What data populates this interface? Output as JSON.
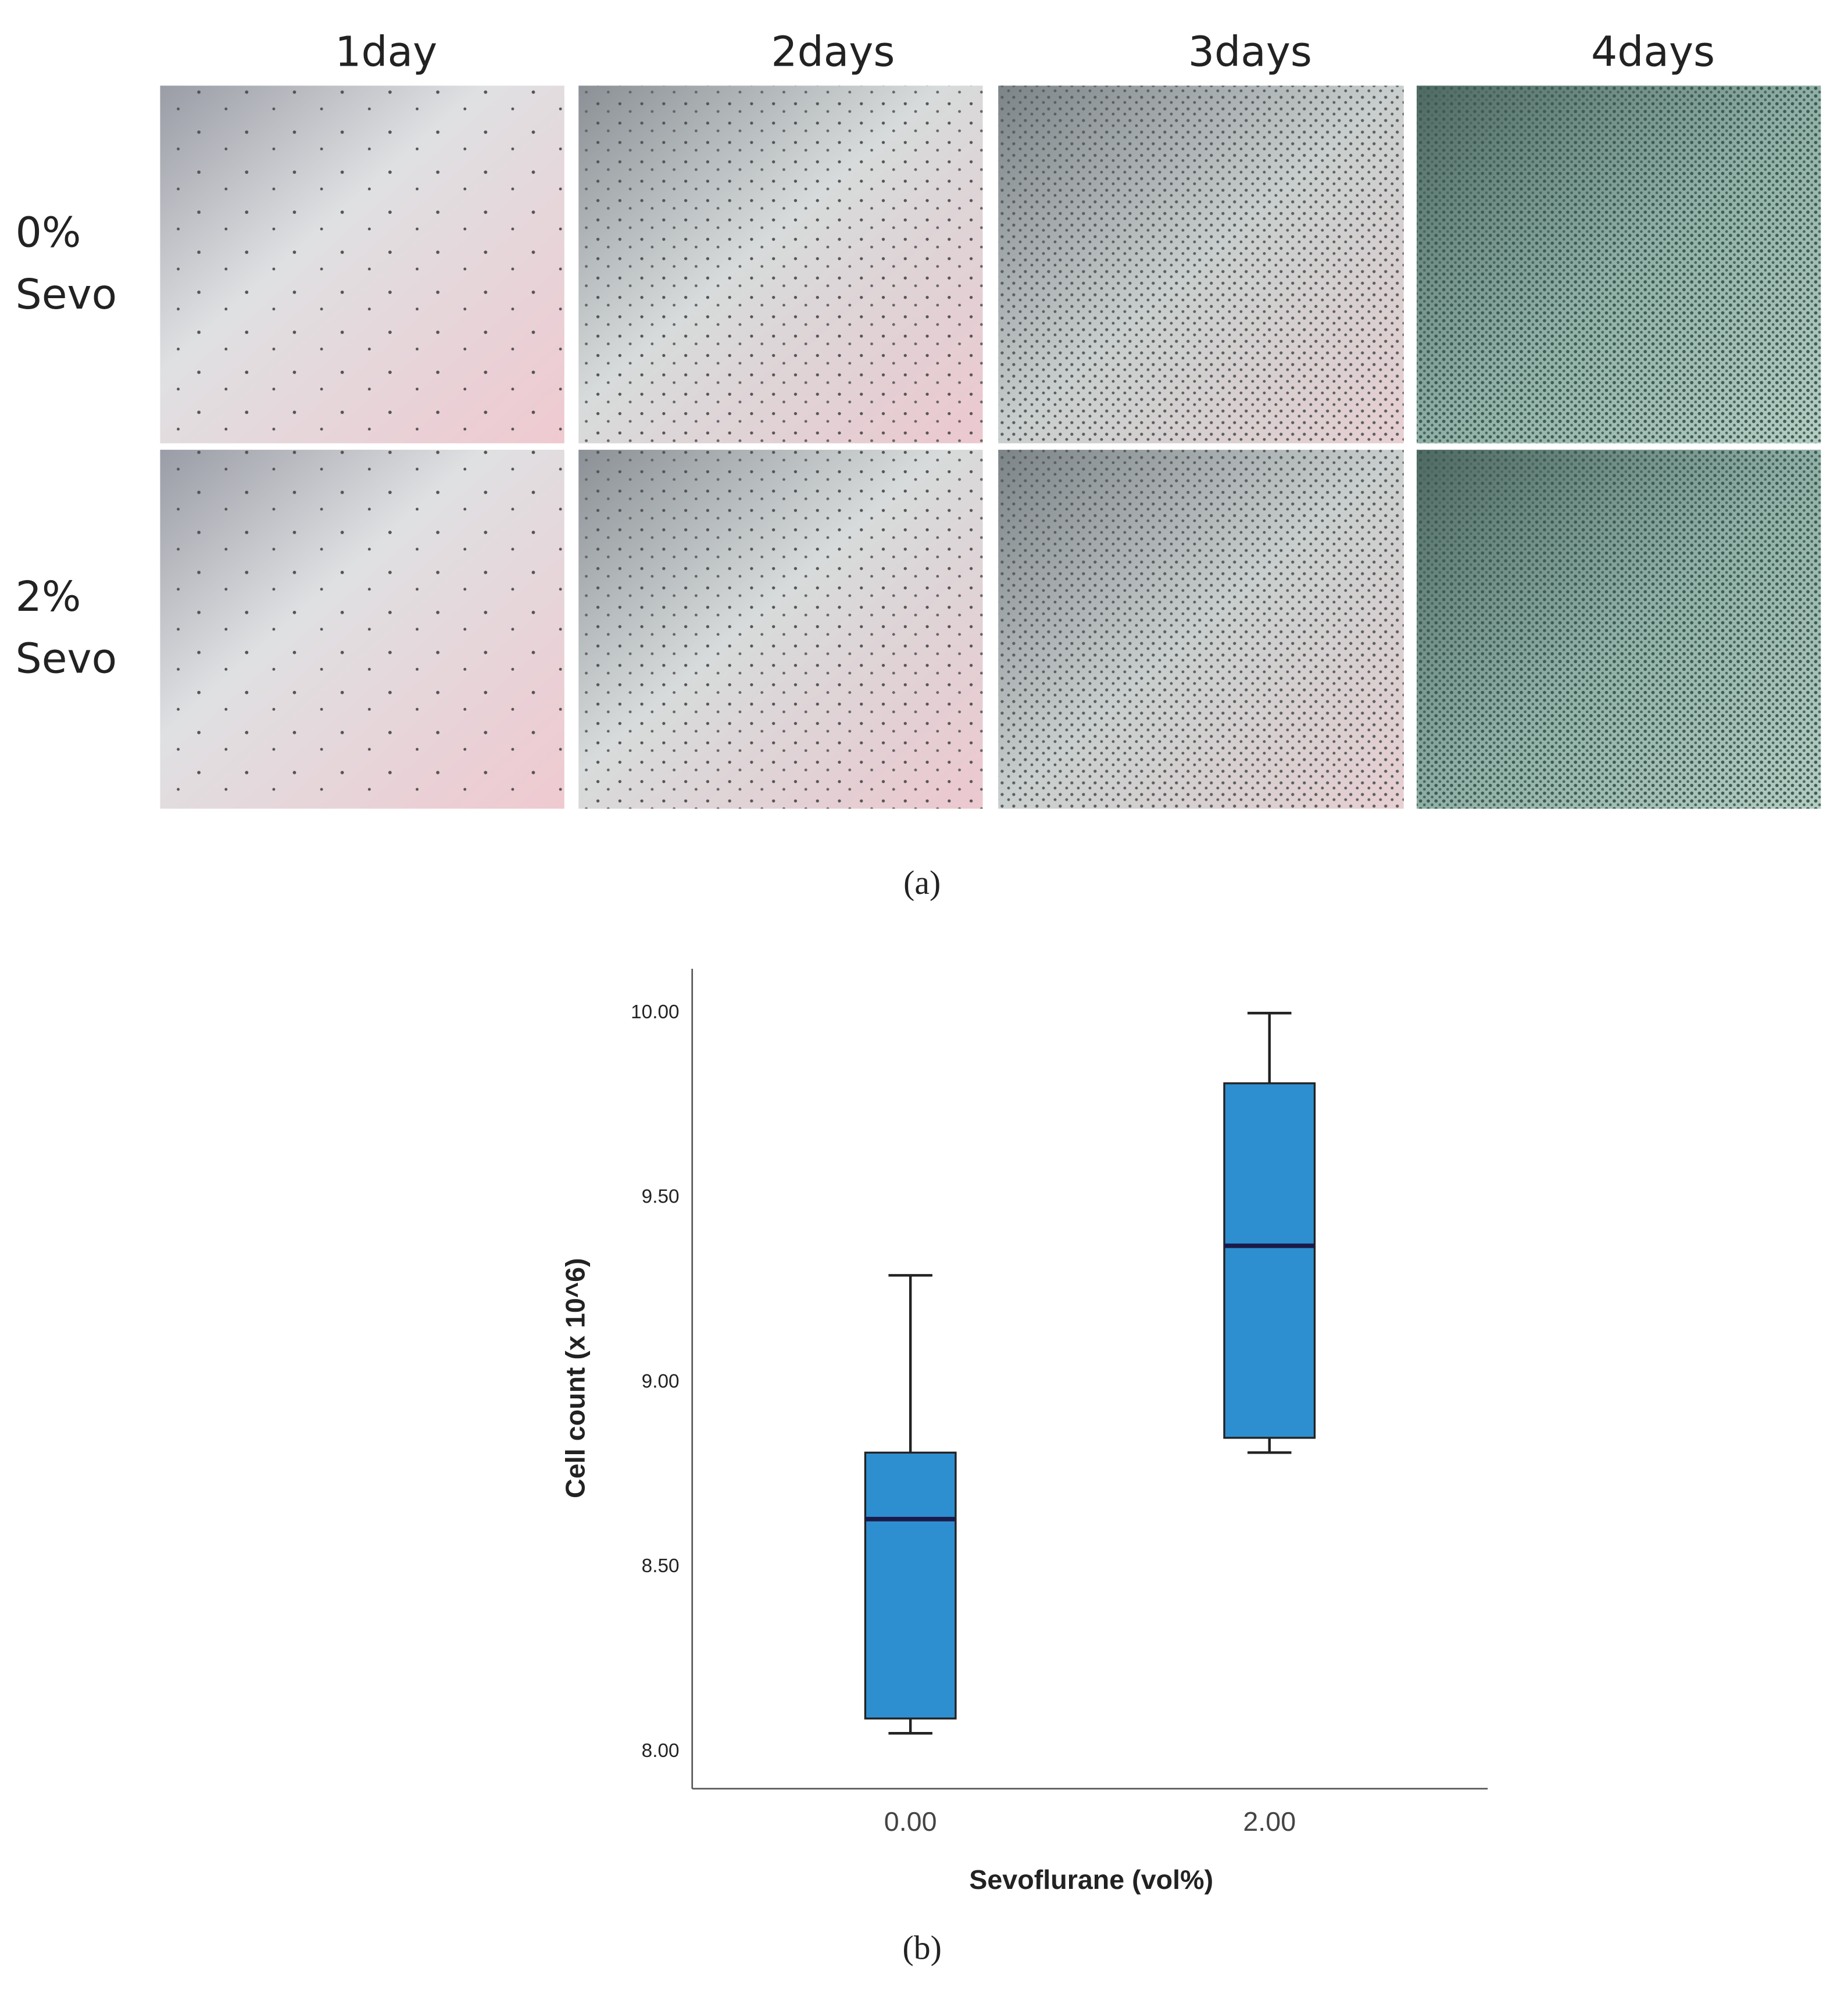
{
  "figure": {
    "columns": [
      "1day",
      "2days",
      "3days",
      "4days"
    ],
    "rows": [
      [
        "0%",
        "Sevo"
      ],
      [
        "2%",
        "Sevo"
      ]
    ],
    "caption_a": "(a)",
    "caption_b": "(b)"
  },
  "chart_data": {
    "type": "box",
    "x_label": "Sevoflurane (vol%)",
    "y_label": "Cell count (x 10^6)",
    "categories": [
      "0.00",
      "2.00"
    ],
    "min": [
      8.05,
      8.81
    ],
    "q1": [
      8.09,
      8.85
    ],
    "median": [
      8.63,
      9.37
    ],
    "q3": [
      8.81,
      9.81
    ],
    "max": [
      9.29,
      10.0
    ],
    "color": "#2e8fd0",
    "ylim": [
      7.9,
      10.12
    ],
    "yticks": [
      {
        "value": 8,
        "label": "8.00"
      },
      {
        "value": 8.5,
        "label": "8.50"
      },
      {
        "value": 9,
        "label": "9.00"
      },
      {
        "value": 9.5,
        "label": "9.50"
      },
      {
        "value": 10,
        "label": "10.00"
      }
    ]
  }
}
